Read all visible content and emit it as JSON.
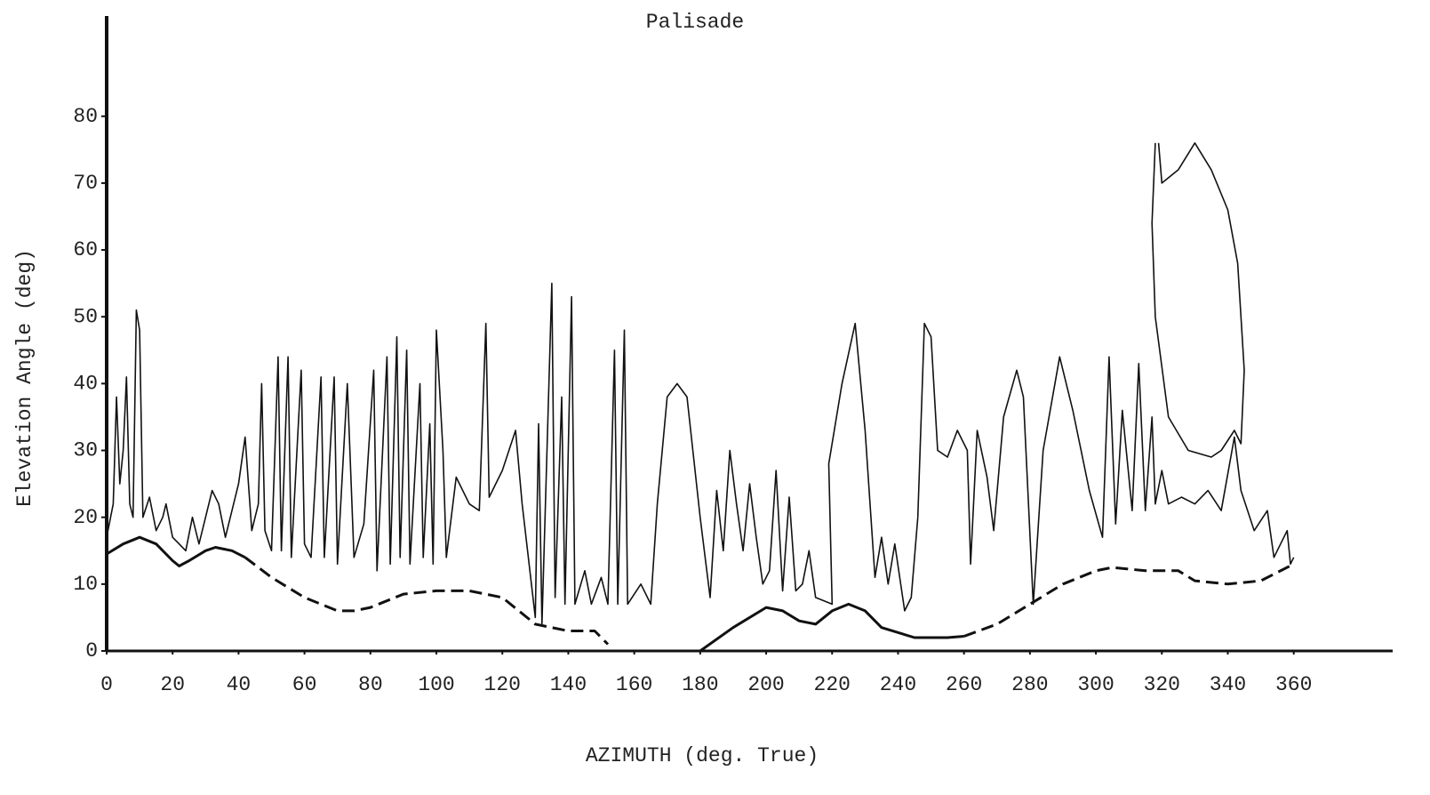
{
  "chart_data": {
    "type": "line",
    "title": "Palisade",
    "x_label": "AZIMUTH (deg. True)",
    "y_label": "Elevation Angle (deg)",
    "xlim": [
      0,
      390
    ],
    "xticks": [
      0,
      20,
      40,
      60,
      80,
      100,
      120,
      140,
      160,
      180,
      200,
      220,
      240,
      260,
      280,
      300,
      320,
      340,
      360
    ],
    "ylim": [
      0,
      95
    ],
    "yticks": [
      0,
      10,
      20,
      30,
      40,
      50,
      60,
      70,
      80
    ],
    "grid": false,
    "series": [
      {
        "color": "#111111",
        "dash": false,
        "line_width": 1.6,
        "x": [
          0,
          2,
          3,
          4,
          5,
          6,
          7,
          8,
          9,
          10,
          11,
          13,
          15,
          17,
          18,
          20,
          22,
          24,
          26,
          28,
          30,
          32,
          34,
          36,
          40,
          42,
          44,
          46,
          47,
          48,
          50,
          52,
          53,
          55,
          56,
          59,
          60,
          62,
          65,
          66,
          69,
          70,
          73,
          75,
          78,
          81,
          82,
          85,
          86,
          88,
          89,
          91,
          92,
          95,
          96,
          98,
          99,
          100,
          102,
          103,
          106,
          110,
          113,
          115,
          116,
          120,
          124,
          126,
          130,
          131,
          132,
          135,
          136,
          138,
          139,
          141,
          142,
          145,
          147,
          150,
          152,
          154,
          155,
          157,
          158,
          162,
          165,
          167,
          170,
          173,
          176,
          180,
          183,
          185,
          187,
          189,
          191,
          193,
          195,
          197,
          199,
          201,
          203,
          205,
          207,
          209,
          211,
          213,
          215,
          220,
          219,
          223,
          227,
          230,
          233,
          235,
          237,
          239,
          242,
          244,
          246,
          248,
          250,
          252,
          255,
          258,
          261,
          262,
          264,
          267,
          269,
          272,
          276,
          278,
          281,
          284,
          289,
          293,
          298,
          302,
          304,
          306,
          308,
          311,
          313,
          315,
          317,
          318,
          320,
          322,
          326,
          330,
          334,
          338,
          342,
          344,
          348,
          352,
          354,
          358,
          359,
          360
        ],
        "values": [
          17,
          22,
          38,
          25,
          30,
          41,
          22,
          20,
          51,
          48,
          20,
          23,
          18,
          20,
          22,
          17,
          16,
          15,
          20,
          16,
          20,
          24,
          22,
          17,
          25,
          32,
          18,
          22,
          40,
          18,
          15,
          44,
          15,
          44,
          14,
          42,
          16,
          14,
          41,
          14,
          41,
          13,
          40,
          14,
          19,
          42,
          12,
          44,
          13,
          47,
          14,
          45,
          13,
          40,
          14,
          34,
          13,
          48,
          30,
          14,
          26,
          22,
          21,
          49,
          23,
          27,
          33,
          22,
          5,
          34,
          4,
          55,
          8,
          38,
          7,
          53,
          7,
          12,
          7,
          11,
          7,
          45,
          7,
          48,
          7,
          10,
          7,
          22,
          38,
          40,
          38,
          20,
          8,
          24,
          15,
          30,
          22,
          15,
          25,
          17,
          10,
          12,
          27,
          9,
          23,
          9,
          10,
          15,
          8,
          7,
          28,
          40,
          49,
          33,
          11,
          17,
          10,
          16,
          6,
          8,
          20,
          49,
          47,
          30,
          29,
          33,
          30,
          13,
          33,
          26,
          18,
          35,
          42,
          38,
          7,
          30,
          44,
          36,
          24,
          17,
          44,
          19,
          36,
          21,
          43,
          21,
          35,
          22,
          27,
          22,
          23,
          22,
          24,
          21,
          32,
          24,
          18,
          21,
          14,
          18,
          13,
          14
        ]
      },
      {
        "color": "#111111",
        "dash": false,
        "line_width": 1.6,
        "x": [
          319,
          320,
          325,
          330,
          335,
          340,
          343,
          345,
          344,
          342,
          338,
          335,
          328,
          322,
          318,
          317,
          318
        ],
        "values": [
          76,
          70,
          72,
          76,
          72,
          66,
          58,
          42,
          31,
          33,
          30,
          29,
          30,
          35,
          50,
          64,
          76
        ]
      },
      {
        "color": "#111111",
        "dash": false,
        "line_width": 3,
        "x": [
          0,
          5,
          10,
          15,
          20,
          22,
          25,
          30,
          33,
          38,
          42
        ],
        "values": [
          14.5,
          16,
          17,
          16,
          13.5,
          12.7,
          13.5,
          15,
          15.5,
          15,
          14
        ]
      },
      {
        "color": "#111111",
        "dash": true,
        "line_width": 3,
        "x": [
          42,
          50,
          60,
          70,
          75,
          80,
          90,
          100,
          110,
          120,
          130,
          140,
          148,
          152
        ],
        "values": [
          14,
          11,
          8,
          6,
          6,
          6.5,
          8.5,
          9,
          9,
          8,
          4,
          3,
          3,
          1
        ]
      },
      {
        "color": "#111111",
        "dash": false,
        "line_width": 3,
        "x": [
          180,
          190,
          200,
          205,
          210,
          215,
          220,
          225,
          230,
          235,
          245,
          255,
          260
        ],
        "values": [
          0,
          3.5,
          6.5,
          6,
          4.5,
          4,
          6,
          7,
          6,
          3.5,
          2,
          2,
          2.2
        ]
      },
      {
        "color": "#111111",
        "dash": true,
        "line_width": 3,
        "x": [
          260,
          270,
          280,
          290,
          300,
          305,
          315,
          325,
          330,
          340,
          350,
          360
        ],
        "values": [
          2.2,
          4,
          7,
          10,
          12,
          12.5,
          12,
          12,
          10.5,
          10,
          10.5,
          13
        ]
      }
    ]
  }
}
